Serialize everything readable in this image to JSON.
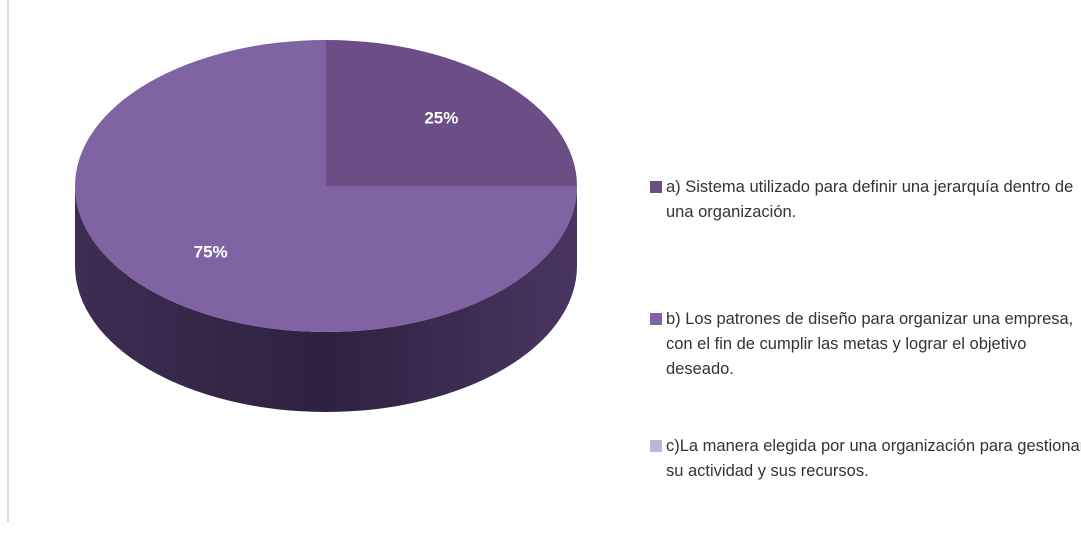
{
  "chart_data": {
    "type": "pie",
    "categories": [
      "a) Sistema utilizado para definir una jerarquía dentro de una organización.",
      "b) Los patrones de diseño para organizar una empresa, con el fin de cumplir las metas y lograr el objetivo deseado.",
      "c)La manera elegida por una organización para gestionar su actividad y sus recursos."
    ],
    "values": [
      25,
      75,
      0
    ],
    "value_labels": [
      "25%",
      "75%",
      null
    ],
    "colors": [
      "#6a4e85",
      "#7f63a3",
      "#c2b3d6"
    ],
    "legend": "right"
  }
}
